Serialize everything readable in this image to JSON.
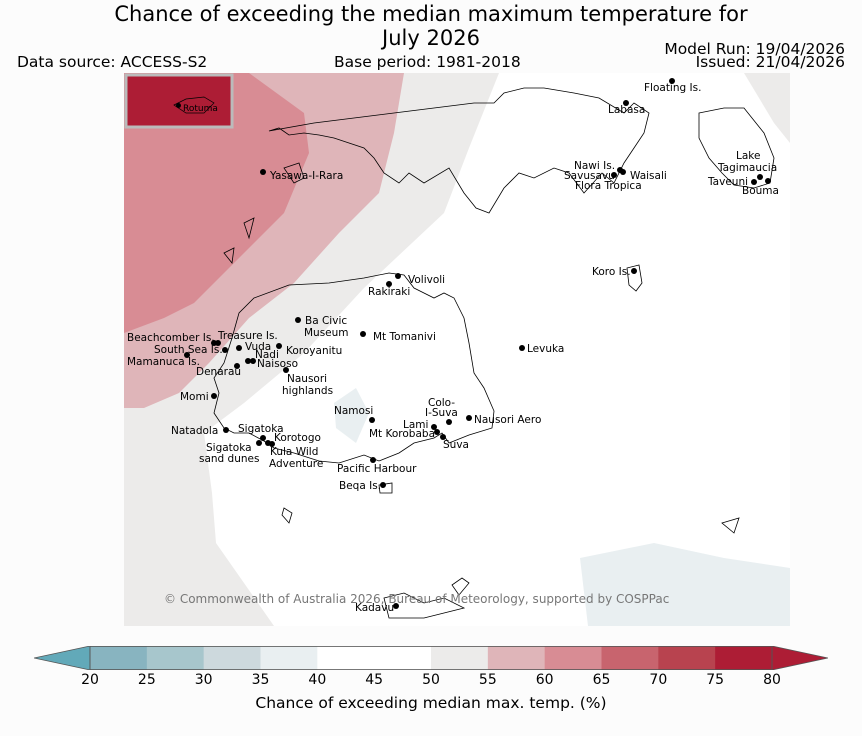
{
  "header": {
    "title_line1": "Chance of exceeding the median maximum temperature for",
    "title_line2": "July 2026",
    "data_source": "Data source: ACCESS-S2",
    "base_period": "Base period: 1981-2018",
    "model_run": "Model Run: 19/04/2026",
    "issued": "Issued: 21/04/2026"
  },
  "map": {
    "inset_label": "Rotuma",
    "copyright": "© Commonwealth of Australia 2026, Bureau of Meteorology, supported by COSPPac",
    "places": {
      "floating_is": "Floating Is.",
      "labasa": "Labasa",
      "yasawa": "Yasawa-I-Rara",
      "nawi_is": "Nawi Is.",
      "savusavu": "Savusavu",
      "flora_tropica": "Flora Tropica",
      "waisali": "Waisali",
      "lake_tagimaucia_1": "Lake",
      "lake_tagimaucia_2": "Tagimaucia",
      "taveuni": "Taveuni",
      "bouma": "Bouma",
      "volivoli": "Volivoli",
      "rakiraki": "Rakiraki",
      "koro_is": "Koro Is.",
      "ba_civic_1": "Ba Civic",
      "ba_civic_2": "Museum",
      "mt_tomanivi": "Mt Tomanivi",
      "beachcomber": "Beachcomber Is.",
      "treasure": "Treasure Is.",
      "south_sea": "South Sea Is.",
      "vuda": "Vuda",
      "koroyanitu": "Koroyanitu",
      "nadi": "Nadi",
      "mamanuca": "Mamanuca Is.",
      "naisoso": "Naisoso",
      "denarau": "Denarau",
      "nausori_high_1": "Nausori",
      "nausori_high_2": "highlands",
      "levuka": "Levuka",
      "momi": "Momi",
      "namosi": "Namosi",
      "colo_1": "Colo-",
      "colo_2": "I-Suva",
      "lami": "Lami",
      "nausori_aero": "Nausori Aero",
      "natadola": "Natadola",
      "sigatoka": "Sigatoka",
      "mt_korobaba": "Mt Korobaba",
      "korotogo": "Korotogo",
      "suva": "Suva",
      "sig_dunes_1": "Sigatoka",
      "sig_dunes_2": "sand dunes",
      "kula_1": "Kula Wild",
      "kula_2": "Adventure",
      "pacific_harbour": "Pacific Harbour",
      "beqa": "Beqa Is.",
      "kadavu": "Kadavu"
    }
  },
  "colorbar": {
    "label": "Chance of exceeding median max. temp. (%)",
    "ticks": [
      "20",
      "25",
      "30",
      "35",
      "40",
      "45",
      "50",
      "55",
      "60",
      "65",
      "70",
      "75",
      "80"
    ],
    "colors": [
      "#62a9b9",
      "#88b4c0",
      "#a7c6cc",
      "#cdd9dd",
      "#e9eff1",
      "#ffffff",
      "#ffffff",
      "#ecebea",
      "#dfb5b9",
      "#d88c94",
      "#c8646e",
      "#b8434f",
      "#ad1d35"
    ]
  }
}
